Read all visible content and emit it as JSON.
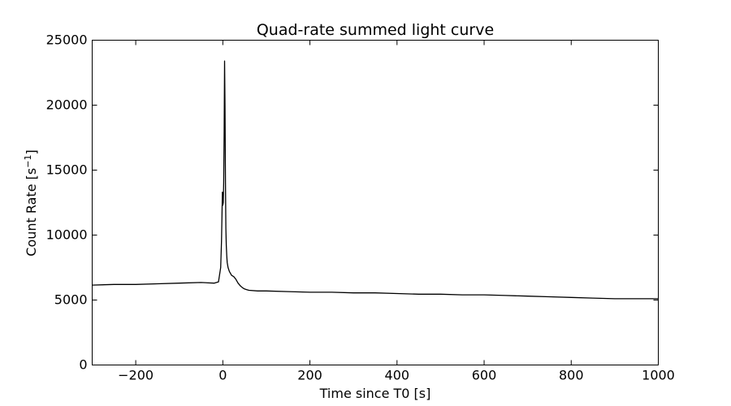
{
  "chart_data": {
    "type": "line",
    "title": "Quad-rate summed light curve",
    "xlabel": "Time since T0 [s]",
    "ylabel": "Count Rate [s",
    "ylabel_exponent": "−1",
    "ylabel_close": "]",
    "xlim": [
      -300,
      1000
    ],
    "ylim": [
      0,
      25000
    ],
    "xticks": [
      -200,
      0,
      200,
      400,
      600,
      800,
      1000
    ],
    "xtick_labels": [
      "−200",
      "0",
      "200",
      "400",
      "600",
      "800",
      "1000"
    ],
    "yticks": [
      0,
      5000,
      10000,
      15000,
      20000,
      25000
    ],
    "ytick_labels": [
      "0",
      "5000",
      "10000",
      "15000",
      "20000",
      "25000"
    ],
    "grid": false,
    "series": [
      {
        "color": "#000000",
        "x": [
          -300,
          -250,
          -200,
          -150,
          -100,
          -50,
          -20,
          -10,
          -5,
          -3,
          -2,
          -1,
          0,
          1,
          2,
          3,
          4,
          5,
          6,
          7,
          8,
          9,
          10,
          12,
          15,
          20,
          25,
          30,
          35,
          40,
          45,
          50,
          55,
          60,
          80,
          100,
          150,
          200,
          250,
          300,
          350,
          400,
          450,
          500,
          550,
          600,
          650,
          700,
          750,
          800,
          850,
          900,
          950,
          1000
        ],
        "y": [
          6150,
          6200,
          6200,
          6250,
          6300,
          6350,
          6300,
          6400,
          7500,
          9500,
          11500,
          13300,
          12300,
          12500,
          14000,
          18000,
          23400,
          20000,
          14000,
          10500,
          9200,
          8400,
          7900,
          7500,
          7200,
          6900,
          6800,
          6600,
          6300,
          6100,
          5950,
          5850,
          5800,
          5750,
          5700,
          5700,
          5650,
          5600,
          5600,
          5550,
          5550,
          5500,
          5450,
          5450,
          5400,
          5400,
          5350,
          5300,
          5250,
          5200,
          5150,
          5100,
          5100,
          5100
        ]
      }
    ]
  }
}
